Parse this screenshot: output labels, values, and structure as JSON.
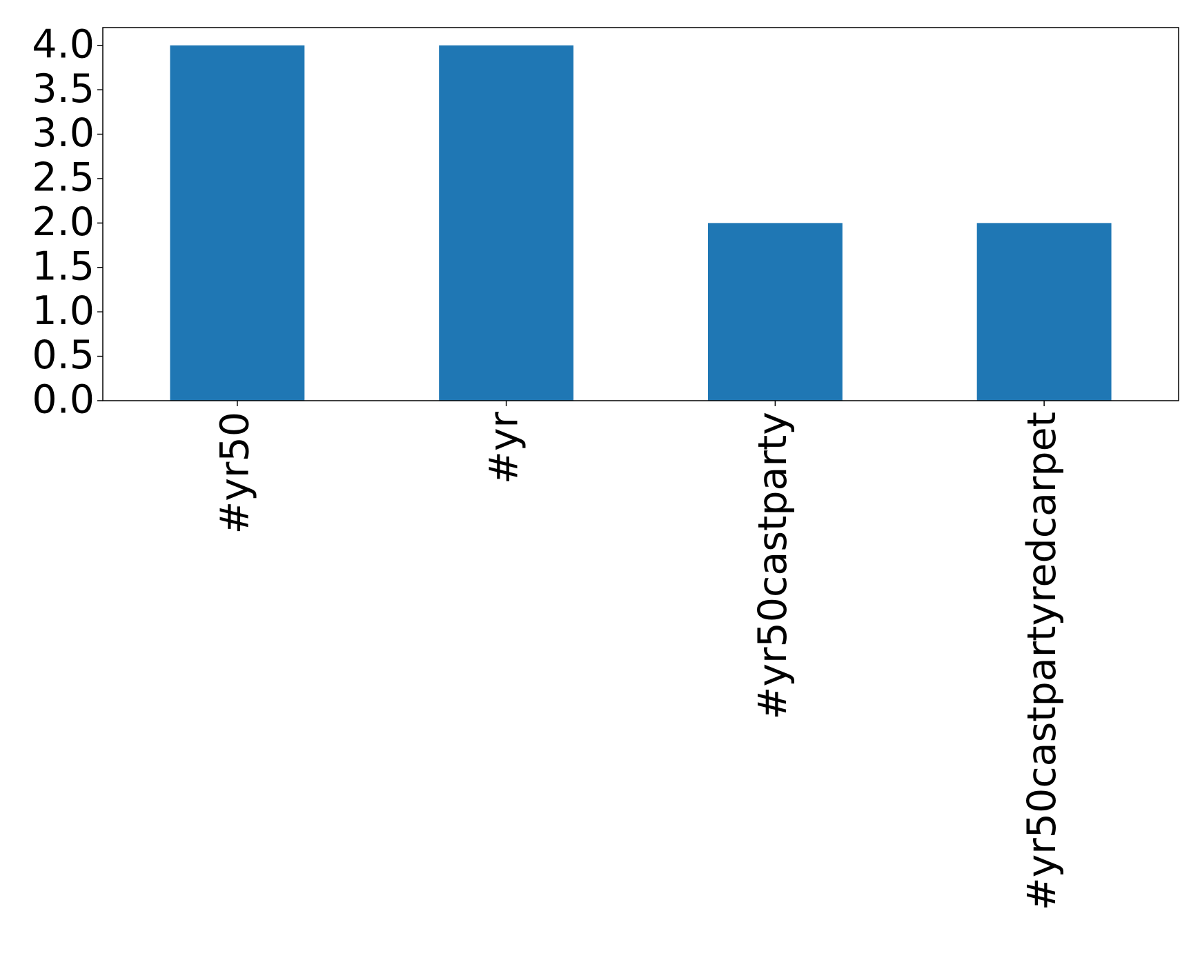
{
  "chart_data": {
    "type": "bar",
    "categories": [
      "#yr50",
      "#yr",
      "#yr50castparty",
      "#yr50castpartyredcarpet"
    ],
    "values": [
      4,
      4,
      2,
      2
    ],
    "color": "#1f77b4",
    "ylim": [
      0,
      4.2
    ],
    "yticks": [
      {
        "value": 0,
        "label": "0.0"
      },
      {
        "value": 0.5,
        "label": "0.5"
      },
      {
        "value": 1,
        "label": "1.0"
      },
      {
        "value": 1.5,
        "label": "1.5"
      },
      {
        "value": 2,
        "label": "2.0"
      },
      {
        "value": 2.5,
        "label": "2.5"
      },
      {
        "value": 3,
        "label": "3.0"
      },
      {
        "value": 3.5,
        "label": "3.5"
      },
      {
        "value": 4,
        "label": "4.0"
      }
    ],
    "grid": false
  }
}
